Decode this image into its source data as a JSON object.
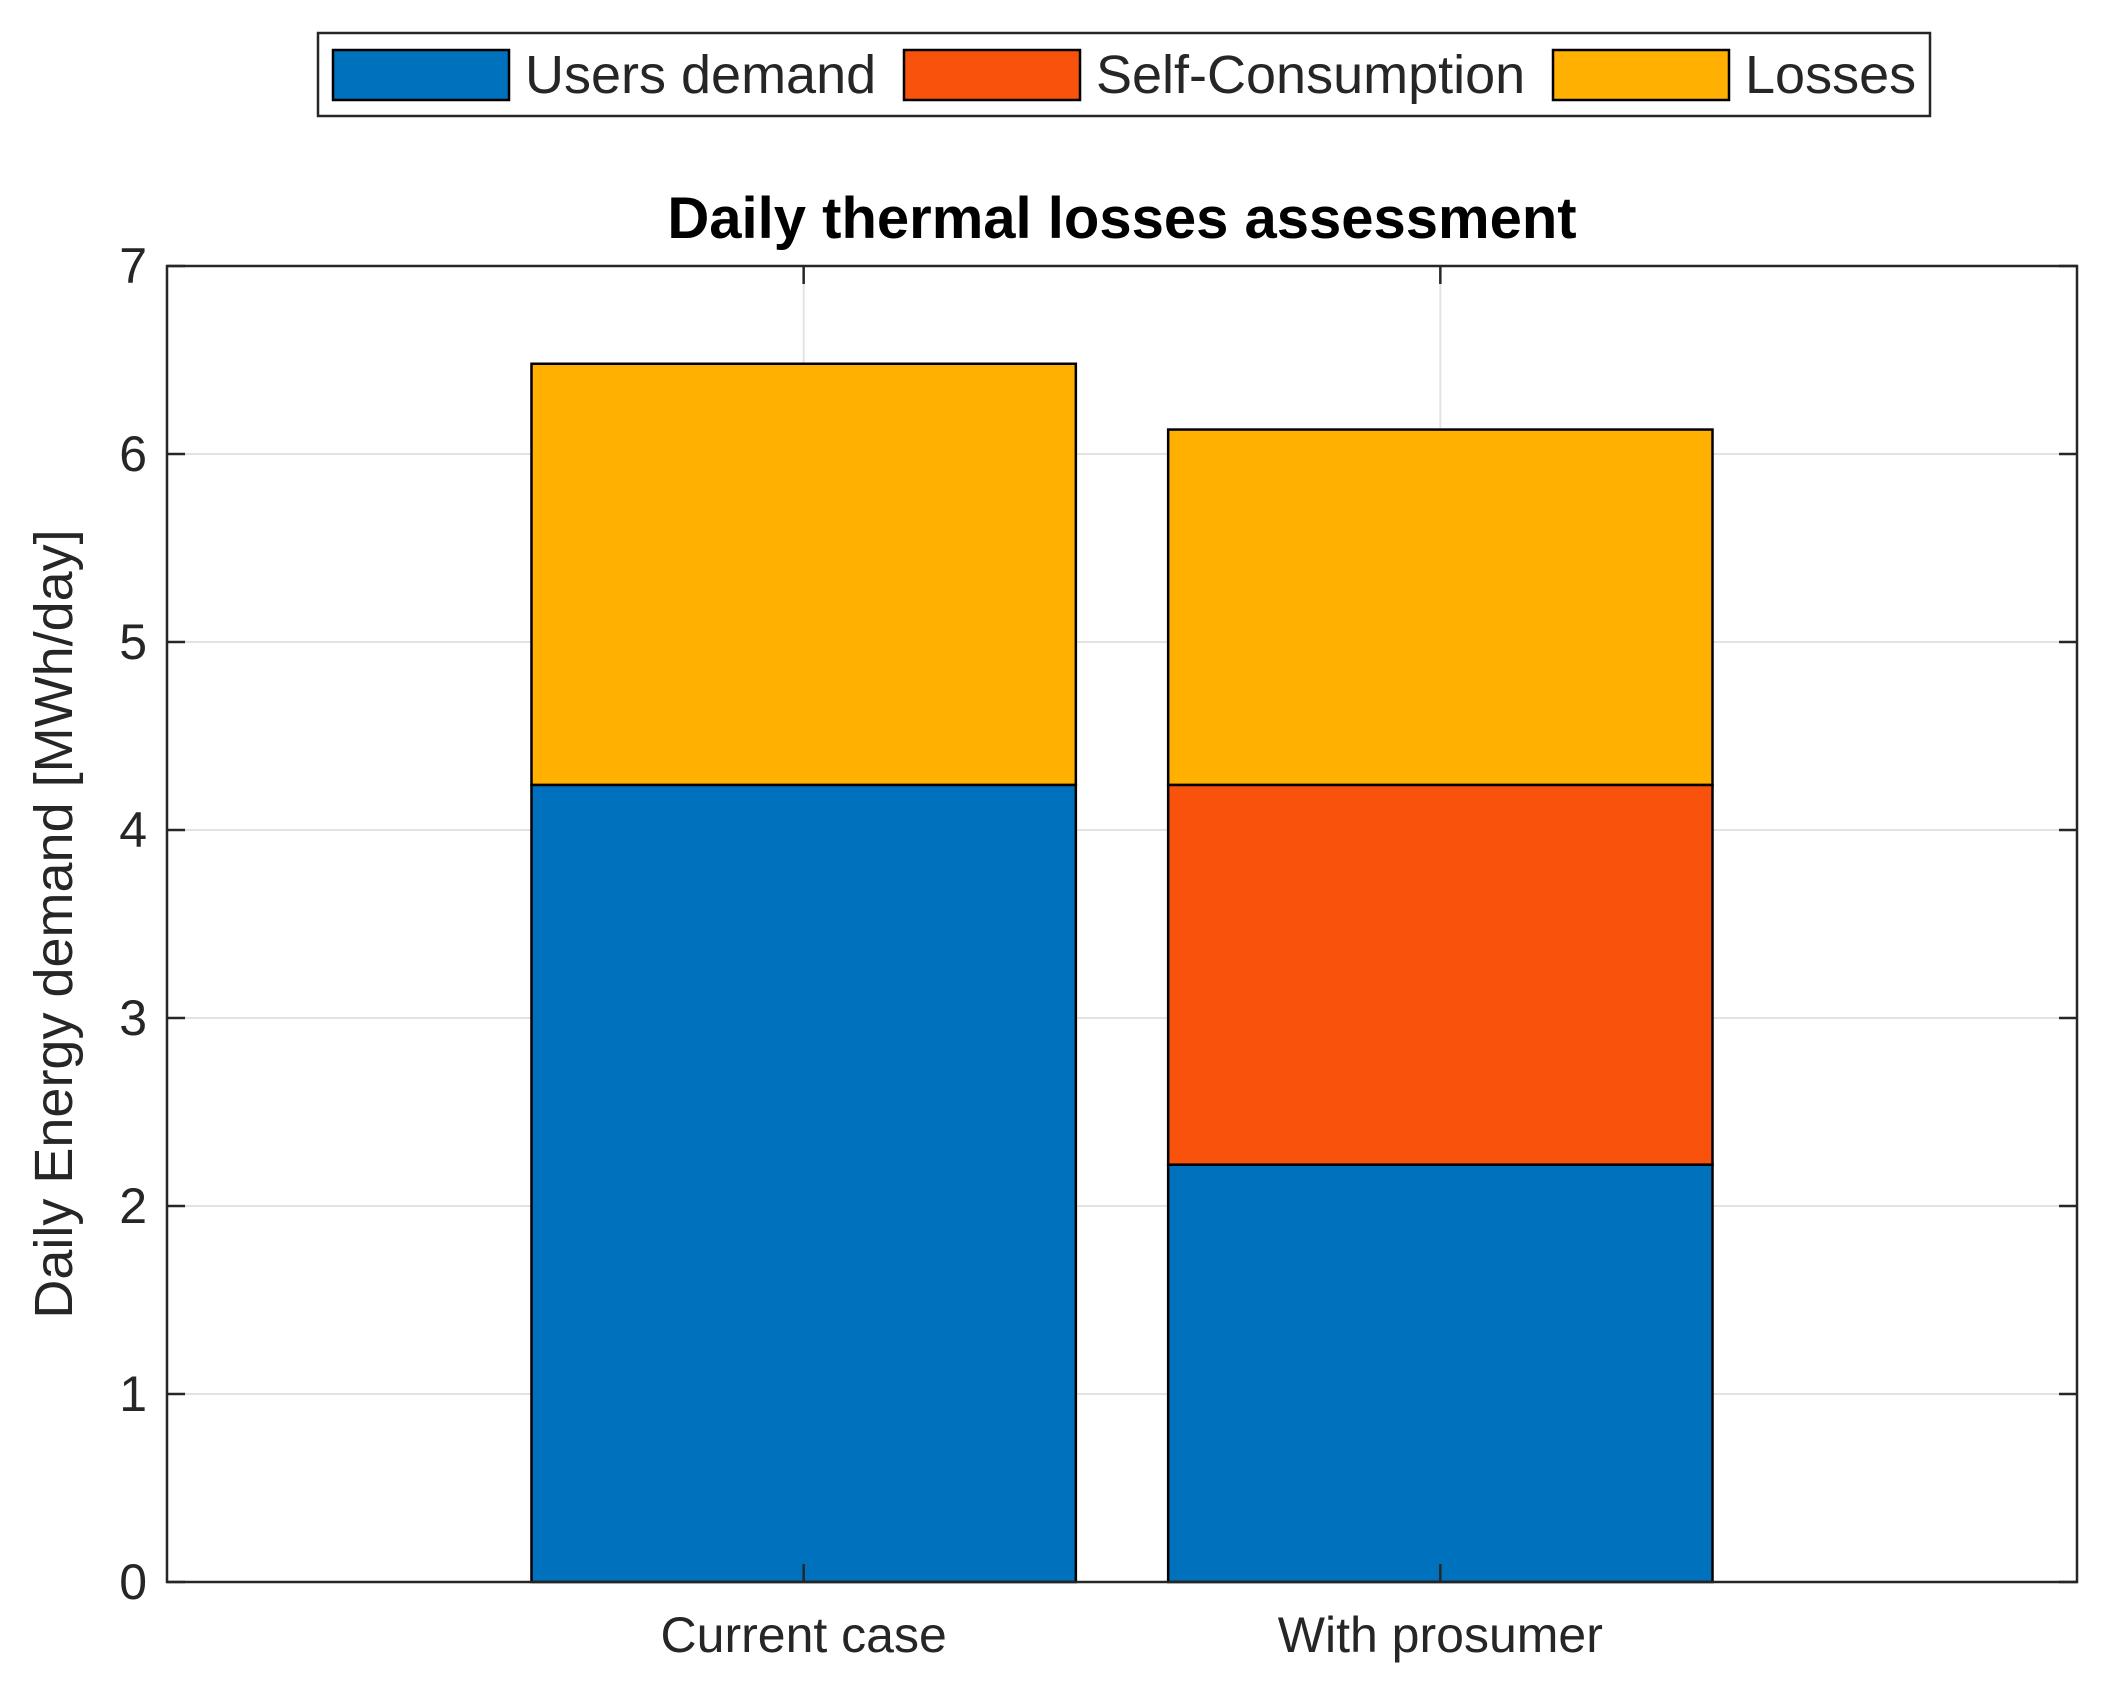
{
  "chart_data": {
    "type": "bar",
    "stacked": true,
    "title": "Daily thermal losses assessment",
    "xlabel": "",
    "ylabel": "Daily Energy demand [MWh/day]",
    "categories": [
      "Current case",
      "With prosumer"
    ],
    "ylim": [
      0,
      7
    ],
    "yticks": [
      0,
      1,
      2,
      3,
      4,
      5,
      6,
      7
    ],
    "grid": true,
    "legend_placement": "top, outside, horizontal",
    "series": [
      {
        "name": "Users demand",
        "values": [
          4.24,
          2.22
        ],
        "color": "#0072BD"
      },
      {
        "name": "Self-Consumption",
        "values": [
          0,
          2.02
        ],
        "color": "#F9520C"
      },
      {
        "name": "Losses",
        "values": [
          2.24,
          1.89
        ],
        "color": "#FFB000"
      }
    ]
  }
}
